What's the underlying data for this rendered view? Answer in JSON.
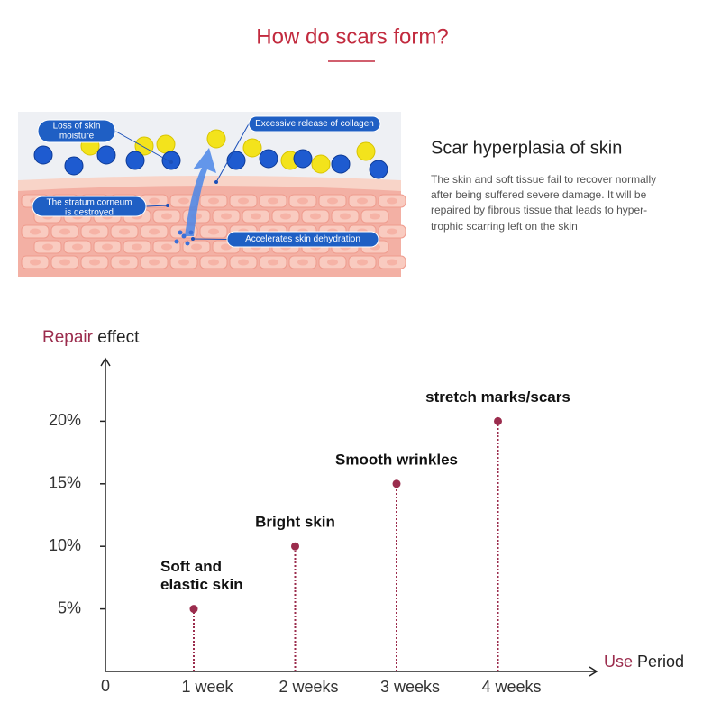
{
  "header": {
    "title": "How do scars form?"
  },
  "illustration": {
    "labels": [
      [
        "Loss of skin",
        "moisture"
      ],
      [
        "Excessive release of collagen"
      ],
      [
        "The stratum corneum",
        "is destroyed"
      ],
      [
        "Accelerates skin dehydration"
      ]
    ]
  },
  "description": {
    "title": "Scar hyperplasia of skin",
    "lines": [
      "The skin and soft tissue fail to recover normally",
      "after being suffered severe damage. It will be",
      "repaired by fibrous tissue that leads to hyper-",
      "trophic scarring left on the skin"
    ]
  },
  "chart_data": {
    "type": "lollipop",
    "y_label": [
      "Repair",
      "effect"
    ],
    "x_label": [
      "Use",
      "Period"
    ],
    "categories": [
      "1 week",
      "2 weeks",
      "3 weeks",
      "4 weeks"
    ],
    "values": [
      5,
      10,
      15,
      20
    ],
    "annotations": [
      [
        "Soft and",
        "elastic skin"
      ],
      [
        "Bright skin"
      ],
      [
        "Smooth wrinkles"
      ],
      [
        "stretch marks/scars"
      ]
    ],
    "color": "#9b2c4d",
    "ylim": [
      0,
      25
    ],
    "yticks": [
      0,
      {
        "value": 5,
        "label": "5%"
      },
      {
        "value": 10,
        "label": "10%"
      },
      {
        "value": 15,
        "label": "15%"
      },
      {
        "value": 20,
        "label": "20%"
      }
    ]
  }
}
